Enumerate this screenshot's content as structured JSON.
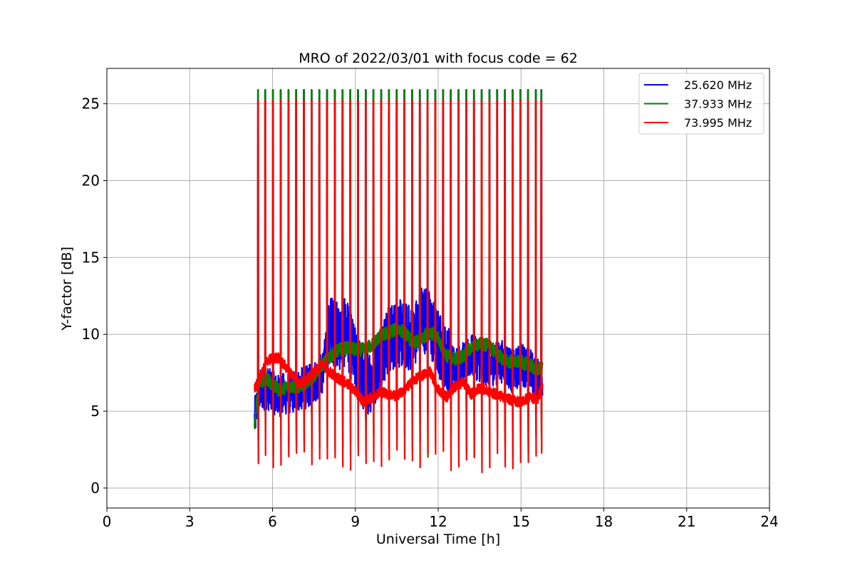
{
  "chart_data": {
    "type": "line",
    "title": "MRO of 2022/03/01 with focus code = 62",
    "xlabel": "Universal Time [h]",
    "ylabel": "Y-factor [dB]",
    "xlim": [
      0,
      24
    ],
    "ylim": [
      -1.3,
      27.3
    ],
    "xticks": [
      0,
      3,
      6,
      9,
      12,
      15,
      18,
      21,
      24
    ],
    "yticks": [
      0,
      5,
      10,
      15,
      20,
      25
    ],
    "grid": true,
    "legend_position": "top-right",
    "data_start_h": 5.35,
    "data_end_h": 15.78,
    "calibration_spikes_h": [
      5.47,
      5.73,
      6.01,
      6.29,
      6.57,
      6.85,
      7.13,
      7.41,
      7.69,
      7.97,
      8.25,
      8.53,
      8.81,
      9.09,
      9.37,
      9.65,
      9.93,
      10.21,
      10.49,
      10.77,
      11.05,
      11.33,
      11.61,
      11.89,
      12.17,
      12.45,
      12.73,
      13.01,
      13.29,
      13.57,
      13.85,
      14.13,
      14.41,
      14.69,
      14.97,
      15.25,
      15.53,
      15.73
    ],
    "series": [
      {
        "name": "25.620 MHz",
        "color": "#0000ff",
        "spike_top": 25.9,
        "spike_bottom": 3.8,
        "x": [
          5.35,
          5.5,
          5.8,
          6.2,
          6.6,
          7.0,
          7.4,
          7.8,
          8.1,
          8.4,
          8.7,
          9.0,
          9.3,
          9.6,
          9.9,
          10.2,
          10.5,
          10.8,
          11.1,
          11.4,
          11.7,
          12.0,
          12.3,
          12.6,
          12.9,
          13.2,
          13.5,
          13.8,
          14.1,
          14.4,
          14.7,
          15.0,
          15.3,
          15.6,
          15.78
        ],
        "y": [
          4.4,
          6.3,
          6.5,
          6.0,
          6.2,
          6.4,
          6.7,
          7.5,
          10.4,
          9.8,
          10.2,
          8.2,
          7.0,
          7.1,
          8.6,
          9.6,
          10.1,
          9.9,
          9.6,
          11.2,
          10.6,
          9.4,
          8.4,
          7.9,
          8.1,
          8.6,
          8.3,
          8.0,
          8.1,
          8.3,
          7.5,
          8.1,
          7.8,
          7.0,
          7.2
        ]
      },
      {
        "name": "37.933 MHz",
        "color": "#008000",
        "spike_top": 25.9,
        "spike_bottom": 2.0,
        "x": [
          5.35,
          5.5,
          5.8,
          6.2,
          6.6,
          7.0,
          7.4,
          7.8,
          8.1,
          8.4,
          8.7,
          9.0,
          9.3,
          9.6,
          9.9,
          10.2,
          10.5,
          10.8,
          11.1,
          11.4,
          11.7,
          12.0,
          12.3,
          12.6,
          12.9,
          13.2,
          13.5,
          13.8,
          14.1,
          14.4,
          14.7,
          15.0,
          15.3,
          15.6,
          15.78
        ],
        "y": [
          4.2,
          6.8,
          7.1,
          6.4,
          6.6,
          6.6,
          7.1,
          8.0,
          8.6,
          9.0,
          9.1,
          9.0,
          9.0,
          9.3,
          9.9,
          10.1,
          10.4,
          10.1,
          9.4,
          9.7,
          10.2,
          9.7,
          8.6,
          8.4,
          8.6,
          9.1,
          9.4,
          9.3,
          8.8,
          8.3,
          8.2,
          8.2,
          8.0,
          7.7,
          7.9
        ]
      },
      {
        "name": "73.995 MHz",
        "color": "#ff0000",
        "spike_top": 25.2,
        "spike_bottom": 1.0,
        "x": [
          5.35,
          5.5,
          5.8,
          6.2,
          6.6,
          7.0,
          7.4,
          7.8,
          8.1,
          8.4,
          8.7,
          9.0,
          9.3,
          9.6,
          9.9,
          10.2,
          10.5,
          10.8,
          11.1,
          11.4,
          11.7,
          12.0,
          12.3,
          12.6,
          12.9,
          13.2,
          13.5,
          13.8,
          14.1,
          14.4,
          14.7,
          15.0,
          15.3,
          15.6,
          15.78
        ],
        "y": [
          6.5,
          6.9,
          8.3,
          8.5,
          7.6,
          6.8,
          7.3,
          8.1,
          7.5,
          7.1,
          6.8,
          6.3,
          5.6,
          5.9,
          6.3,
          6.1,
          6.0,
          6.4,
          7.0,
          7.3,
          7.6,
          6.4,
          5.9,
          6.6,
          6.9,
          6.1,
          6.5,
          6.3,
          6.1,
          5.9,
          5.7,
          5.6,
          5.9,
          5.8,
          6.7
        ]
      }
    ]
  }
}
